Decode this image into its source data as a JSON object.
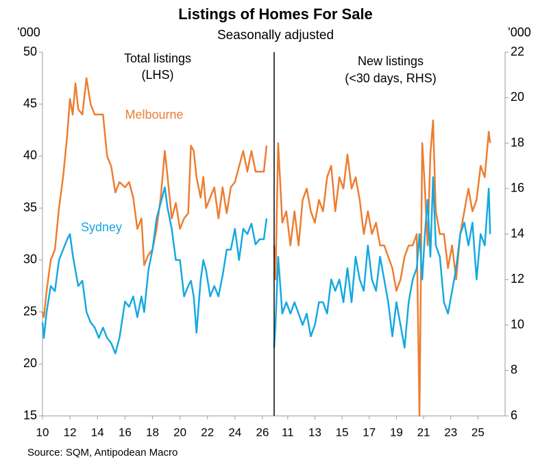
{
  "title": "Listings of Homes For Sale",
  "subtitle": "Seasonally adjusted",
  "source": "Source: SQM, Antipodean Macro",
  "chart_data": [
    {
      "type": "line",
      "ylabel": "'000",
      "annotation": [
        "Total listings",
        "(LHS)"
      ],
      "xlim": [
        10,
        26.85
      ],
      "xticks": [
        10,
        12,
        14,
        16,
        18,
        20,
        22,
        24,
        26
      ],
      "ylim": [
        15,
        50
      ],
      "yticks": [
        15,
        20,
        25,
        30,
        35,
        40,
        45,
        50
      ],
      "x": [
        10.0,
        10.1,
        10.3,
        10.6,
        10.9,
        11.2,
        11.5,
        11.8,
        12.0,
        12.2,
        12.4,
        12.6,
        12.9,
        13.2,
        13.5,
        13.8,
        14.1,
        14.4,
        14.7,
        15.0,
        15.3,
        15.6,
        16.0,
        16.3,
        16.6,
        16.9,
        17.2,
        17.4,
        17.7,
        18.0,
        18.3,
        18.6,
        18.9,
        19.1,
        19.4,
        19.7,
        20.0,
        20.3,
        20.6,
        20.8,
        21.0,
        21.2,
        21.5,
        21.7,
        21.9,
        22.2,
        22.5,
        22.8,
        23.1,
        23.4,
        23.7,
        24.0,
        24.3,
        24.6,
        24.9,
        25.2,
        25.5,
        25.8,
        26.1,
        26.3
      ],
      "series": [
        {
          "name": "Melbourne",
          "color": "#ED7D31",
          "values": [
            25,
            24.5,
            27,
            30,
            31,
            35,
            38,
            42,
            45.5,
            44,
            47,
            44.5,
            44,
            47.5,
            45,
            44,
            44,
            44,
            40,
            39,
            36.5,
            37.5,
            37,
            37.5,
            36,
            33,
            34,
            29.5,
            30.5,
            31,
            33,
            36,
            40.5,
            38,
            34,
            35.5,
            33,
            34,
            34.5,
            41,
            40.5,
            38,
            36,
            38,
            35,
            36,
            37,
            34,
            37,
            34.5,
            37,
            37.5,
            39,
            40.5,
            38.5,
            40.5,
            38.5,
            38.5,
            38.5,
            41
          ]
        },
        {
          "name": "Sydney",
          "color": "#14A9E1",
          "values": [
            24,
            22.5,
            25,
            27.5,
            27,
            30,
            31,
            32,
            32.5,
            30.5,
            29,
            27.5,
            28,
            25,
            24,
            23.5,
            22.5,
            23.5,
            22.5,
            22,
            21,
            22.5,
            26,
            25.5,
            26.5,
            24.5,
            26.5,
            25,
            29,
            31,
            34,
            35.5,
            37,
            35,
            33,
            30,
            30,
            26.5,
            27.5,
            28,
            26.5,
            23,
            28,
            30,
            29,
            26.5,
            27.5,
            26.5,
            28.5,
            31,
            31,
            33,
            30,
            33,
            32.5,
            33.5,
            31.5,
            32,
            32,
            34
          ]
        }
      ]
    },
    {
      "type": "line",
      "ylabel": "'000",
      "annotation": [
        "New listings",
        "(<30 days, RHS)"
      ],
      "xlim": [
        10,
        27
      ],
      "xticks": [
        11,
        13,
        15,
        17,
        19,
        21,
        23,
        25
      ],
      "ylim": [
        6,
        22
      ],
      "yticks": [
        6,
        8,
        10,
        12,
        14,
        16,
        18,
        20,
        22
      ],
      "x": [
        10.0,
        10.1,
        10.3,
        10.6,
        10.9,
        11.2,
        11.5,
        11.8,
        12.1,
        12.4,
        12.7,
        13.0,
        13.3,
        13.6,
        13.9,
        14.2,
        14.5,
        14.8,
        15.1,
        15.4,
        15.7,
        16.0,
        16.3,
        16.6,
        16.9,
        17.2,
        17.5,
        17.8,
        18.1,
        18.4,
        18.7,
        19.0,
        19.3,
        19.6,
        19.9,
        20.2,
        20.5,
        20.7,
        20.9,
        21.1,
        21.3,
        21.5,
        21.7,
        21.9,
        22.2,
        22.5,
        22.8,
        23.1,
        23.4,
        23.7,
        24.0,
        24.3,
        24.6,
        24.9,
        25.2,
        25.5,
        25.8,
        25.9
      ],
      "series": [
        {
          "color": "#ED7D31",
          "values": [
            13.5,
            12,
            18,
            14.5,
            15,
            13.5,
            15,
            13.5,
            15.5,
            16,
            15,
            14.5,
            15.5,
            15,
            16.5,
            17,
            15,
            16.5,
            16,
            17.5,
            16,
            16.5,
            15.5,
            14,
            15,
            14,
            14.5,
            13.5,
            13.5,
            13,
            12.5,
            11.5,
            12,
            13,
            13.5,
            13.5,
            14,
            6,
            18,
            16,
            13.5,
            17.5,
            19,
            15,
            14,
            14,
            12.5,
            13.5,
            12,
            14,
            15,
            16,
            15,
            15.5,
            17,
            16.5,
            18.5,
            18
          ]
        },
        {
          "color": "#14A9E1",
          "values": [
            9,
            10,
            13,
            10.5,
            11,
            10.5,
            11,
            10.5,
            10,
            10.5,
            9.5,
            10,
            11,
            11,
            10.5,
            12,
            11.5,
            12,
            11,
            12.5,
            11,
            13,
            12,
            11.5,
            13.5,
            12,
            11.5,
            13,
            12,
            11,
            9.5,
            11,
            10,
            9,
            11,
            12,
            12.5,
            14,
            12,
            14,
            15.5,
            13,
            16.5,
            13.5,
            13,
            11,
            10.5,
            11.5,
            12.5,
            14,
            14.5,
            13.5,
            14.5,
            12,
            14,
            13.5,
            16,
            14
          ]
        }
      ]
    }
  ]
}
